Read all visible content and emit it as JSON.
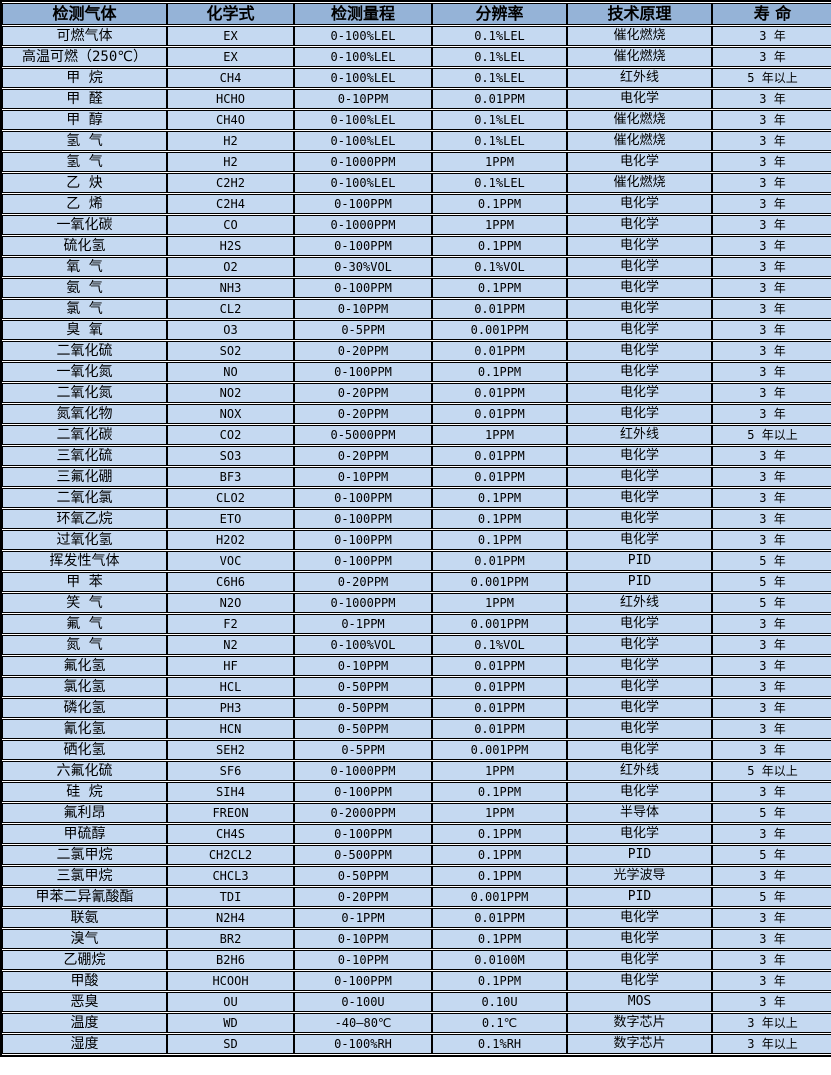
{
  "colors": {
    "header_bg": "#95B3D7",
    "row_bg": "#C5D9F1",
    "border": "#000000",
    "text": "#000000"
  },
  "table": {
    "headers": [
      "检测气体",
      "化学式",
      "检测量程",
      "分辨率",
      "技术原理",
      "寿 命"
    ],
    "column_keys": [
      "gas",
      "formula",
      "range",
      "resolution",
      "principle",
      "lifespan"
    ],
    "rows": [
      [
        "可燃气体",
        "EX",
        "0-100%LEL",
        "0.1%LEL",
        "催化燃烧",
        "3 年"
      ],
      [
        "高温可燃（250℃）",
        "EX",
        "0-100%LEL",
        "0.1%LEL",
        "催化燃烧",
        "3 年"
      ],
      [
        "甲 烷",
        "CH4",
        "0-100%LEL",
        "0.1%LEL",
        "红外线",
        "5 年以上"
      ],
      [
        "甲 醛",
        "HCHO",
        "0-10PPM",
        "0.01PPM",
        "电化学",
        "3 年"
      ],
      [
        "甲 醇",
        "CH4O",
        "0-100%LEL",
        "0.1%LEL",
        "催化燃烧",
        "3 年"
      ],
      [
        "氢 气",
        "H2",
        "0-100%LEL",
        "0.1%LEL",
        "催化燃烧",
        "3 年"
      ],
      [
        "氢 气",
        "H2",
        "0-1000PPM",
        "1PPM",
        "电化学",
        "3 年"
      ],
      [
        "乙 炔",
        "C2H2",
        "0-100%LEL",
        "0.1%LEL",
        "催化燃烧",
        "3 年"
      ],
      [
        "乙 烯",
        "C2H4",
        "0-100PPM",
        "0.1PPM",
        "电化学",
        "3 年"
      ],
      [
        "一氧化碳",
        "CO",
        "0-1000PPM",
        "1PPM",
        "电化学",
        "3 年"
      ],
      [
        "硫化氢",
        "H2S",
        "0-100PPM",
        "0.1PPM",
        "电化学",
        "3 年"
      ],
      [
        "氧 气",
        "O2",
        "0-30%VOL",
        "0.1%VOL",
        "电化学",
        "3 年"
      ],
      [
        "氨 气",
        "NH3",
        "0-100PPM",
        "0.1PPM",
        "电化学",
        "3 年"
      ],
      [
        "氯 气",
        "CL2",
        "0-10PPM",
        "0.01PPM",
        "电化学",
        "3 年"
      ],
      [
        "臭 氧",
        "O3",
        "0-5PPM",
        "0.001PPM",
        "电化学",
        "3 年"
      ],
      [
        "二氧化硫",
        "SO2",
        "0-20PPM",
        "0.01PPM",
        "电化学",
        "3 年"
      ],
      [
        "一氧化氮",
        "NO",
        "0-100PPM",
        "0.1PPM",
        "电化学",
        "3 年"
      ],
      [
        "二氧化氮",
        "NO2",
        "0-20PPM",
        "0.01PPM",
        "电化学",
        "3 年"
      ],
      [
        "氮氧化物",
        "NOX",
        "0-20PPM",
        "0.01PPM",
        "电化学",
        "3 年"
      ],
      [
        "二氧化碳",
        "CO2",
        "0-5000PPM",
        "1PPM",
        "红外线",
        "5 年以上"
      ],
      [
        "三氧化硫",
        "SO3",
        "0-20PPM",
        "0.01PPM",
        "电化学",
        "3 年"
      ],
      [
        "三氟化硼",
        "BF3",
        "0-10PPM",
        "0.01PPM",
        "电化学",
        "3 年"
      ],
      [
        "二氧化氯",
        "CLO2",
        "0-100PPM",
        "0.1PPM",
        "电化学",
        "3 年"
      ],
      [
        "环氧乙烷",
        "ETO",
        "0-100PPM",
        "0.1PPM",
        "电化学",
        "3 年"
      ],
      [
        "过氧化氢",
        "H2O2",
        "0-100PPM",
        "0.1PPM",
        "电化学",
        "3 年"
      ],
      [
        "挥发性气体",
        "VOC",
        "0-100PPM",
        "0.01PPM",
        "PID",
        "5 年"
      ],
      [
        "甲 苯",
        "C6H6",
        "0-20PPM",
        "0.001PPM",
        "PID",
        "5 年"
      ],
      [
        "笑 气",
        "N2O",
        "0-1000PPM",
        "1PPM",
        "红外线",
        "5 年"
      ],
      [
        "氟 气",
        "F2",
        "0-1PPM",
        "0.001PPM",
        "电化学",
        "3 年"
      ],
      [
        "氮 气",
        "N2",
        "0-100%VOL",
        "0.1%VOL",
        "电化学",
        "3 年"
      ],
      [
        "氟化氢",
        "HF",
        "0-10PPM",
        "0.01PPM",
        "电化学",
        "3 年"
      ],
      [
        "氯化氢",
        "HCL",
        "0-50PPM",
        "0.01PPM",
        "电化学",
        "3 年"
      ],
      [
        "磷化氢",
        "PH3",
        "0-50PPM",
        "0.01PPM",
        "电化学",
        "3 年"
      ],
      [
        "氰化氢",
        "HCN",
        "0-50PPM",
        "0.01PPM",
        "电化学",
        "3 年"
      ],
      [
        "硒化氢",
        "SEH2",
        "0-5PPM",
        "0.001PPM",
        "电化学",
        "3 年"
      ],
      [
        "六氟化硫",
        "SF6",
        "0-1000PPM",
        "1PPM",
        "红外线",
        "5 年以上"
      ],
      [
        "硅 烷",
        "SIH4",
        "0-100PPM",
        "0.1PPM",
        "电化学",
        "3 年"
      ],
      [
        "氟利昂",
        "FREON",
        "0-2000PPM",
        "1PPM",
        "半导体",
        "5 年"
      ],
      [
        "甲硫醇",
        "CH4S",
        "0-100PPM",
        "0.1PPM",
        "电化学",
        "3 年"
      ],
      [
        "二氯甲烷",
        "CH2CL2",
        "0-500PPM",
        "0.1PPM",
        "PID",
        "5 年"
      ],
      [
        "三氯甲烷",
        "CHCL3",
        "0-50PPM",
        "0.1PPM",
        "光学波导",
        "3 年"
      ],
      [
        "甲苯二异氰酸酯",
        "TDI",
        "0-20PPM",
        "0.001PPM",
        "PID",
        "5 年"
      ],
      [
        "联氨",
        "N2H4",
        "0-1PPM",
        "0.01PPM",
        "电化学",
        "3 年"
      ],
      [
        "溴气",
        "BR2",
        "0-10PPM",
        "0.1PPM",
        "电化学",
        "3 年"
      ],
      [
        "乙硼烷",
        "B2H6",
        "0-10PPM",
        "0.0100M",
        "电化学",
        "3 年"
      ],
      [
        "甲酸",
        "HCOOH",
        "0-100PPM",
        "0.1PPM",
        "电化学",
        "3 年"
      ],
      [
        "恶臭",
        "OU",
        "0-100U",
        "0.10U",
        "MOS",
        "3 年"
      ],
      [
        "温度",
        "WD",
        "-40—80℃",
        "0.1℃",
        "数字芯片",
        "3 年以上"
      ],
      [
        "湿度",
        "SD",
        "0-100%RH",
        "0.1%RH",
        "数字芯片",
        "3 年以上"
      ]
    ]
  }
}
